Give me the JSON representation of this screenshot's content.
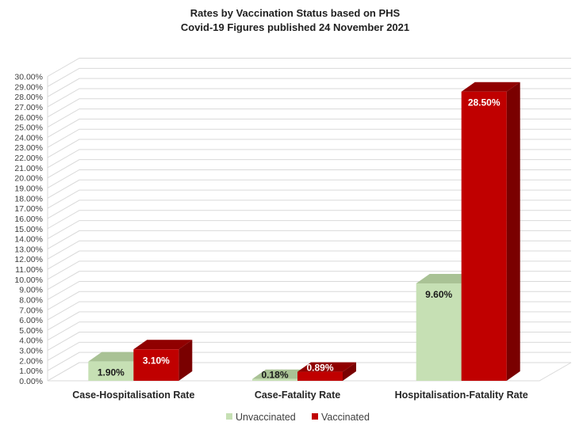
{
  "chart_data": {
    "type": "bar",
    "title_line1": "Rates by Vaccination Status based on PHS",
    "title_line2": "Covid-19 Figures published 24 November 2021",
    "categories": [
      "Case-Hospitalisation Rate",
      "Case-Fatality Rate",
      "Hospitalisation-Fatality Rate"
    ],
    "series": [
      {
        "name": "Unvaccinated",
        "values": [
          1.9,
          0.18,
          9.6
        ],
        "labels": [
          "1.90%",
          "0.18%",
          "9.60%"
        ],
        "color": "#c6e0b4",
        "top_color": "#a9c295",
        "side_color": "#8fa77d",
        "label_color": "#1a1a1a"
      },
      {
        "name": "Vaccinated",
        "values": [
          3.1,
          0.89,
          28.5
        ],
        "labels": [
          "3.10%",
          "0.89%",
          "28.50%"
        ],
        "color": "#c00000",
        "top_color": "#900000",
        "side_color": "#7a0000",
        "label_color": "#ffffff"
      }
    ],
    "ylim": [
      0,
      30
    ],
    "y_tick_step": 1,
    "y_tick_format": "percent_2dp",
    "grid": true,
    "legend_position": "bottom",
    "xlabel": "",
    "ylabel": ""
  }
}
